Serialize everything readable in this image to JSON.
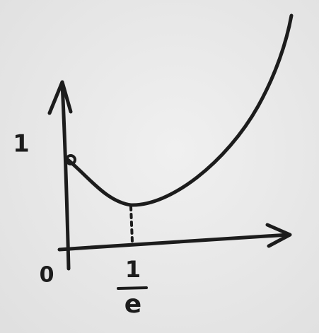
{
  "labels": {
    "y_mark": "1",
    "origin": "0",
    "x_mark_numerator": "1",
    "x_mark_denominator": "e"
  }
}
